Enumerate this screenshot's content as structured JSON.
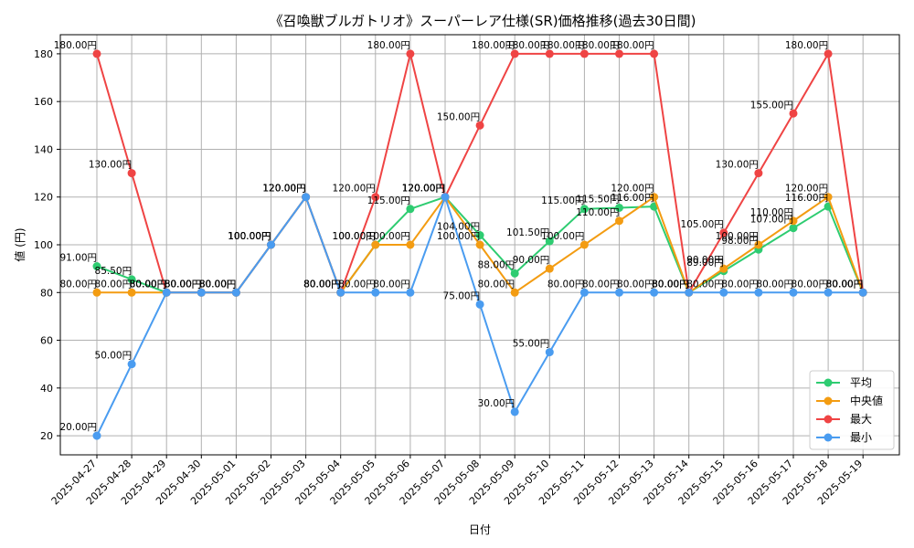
{
  "chart_data": {
    "type": "line",
    "title": "《召喚獣ブルガトリオ》スーパーレア仕様(SR)価格推移(過去30日間)",
    "xlabel": "日付",
    "ylabel": "値 (円)",
    "ylim": [
      12,
      188
    ],
    "yticks": [
      20,
      40,
      60,
      80,
      100,
      120,
      140,
      160,
      180
    ],
    "grid": true,
    "legend_position": "bottom-right",
    "value_suffix": "円",
    "categories": [
      "2025-04-27",
      "2025-04-28",
      "2025-04-29",
      "2025-04-30",
      "2025-05-01",
      "2025-05-02",
      "2025-05-03",
      "2025-05-04",
      "2025-05-05",
      "2025-05-06",
      "2025-05-07",
      "2025-05-08",
      "2025-05-09",
      "2025-05-10",
      "2025-05-11",
      "2025-05-12",
      "2025-05-13",
      "2025-05-14",
      "2025-05-15",
      "2025-05-16",
      "2025-05-17",
      "2025-05-18",
      "2025-05-19"
    ],
    "series": [
      {
        "name": "平均",
        "color": "#2ecc71",
        "values": [
          91,
          85.5,
          80,
          80,
          80,
          100,
          120,
          80,
          100,
          115,
          120,
          104,
          88,
          101.5,
          115,
          115.5,
          116,
          80,
          89,
          98,
          107,
          116,
          80
        ]
      },
      {
        "name": "中央値",
        "color": "#f39c12",
        "values": [
          80,
          80,
          80,
          80,
          80,
          100,
          120,
          80,
          100,
          100,
          120,
          100,
          80,
          90,
          100,
          110,
          120,
          80,
          90,
          100,
          110,
          120,
          80
        ]
      },
      {
        "name": "最大",
        "color": "#ef4444",
        "values": [
          180,
          130,
          80,
          80,
          80,
          100,
          120,
          80,
          120,
          180,
          120,
          150,
          180,
          180,
          180,
          180,
          180,
          80,
          105,
          130,
          155,
          180,
          80
        ]
      },
      {
        "name": "最小",
        "color": "#4a9cf0",
        "values": [
          20,
          50,
          80,
          80,
          80,
          100,
          120,
          80,
          80,
          80,
          120,
          75,
          30,
          55,
          80,
          80,
          80,
          80,
          80,
          80,
          80,
          80,
          80
        ]
      }
    ]
  }
}
